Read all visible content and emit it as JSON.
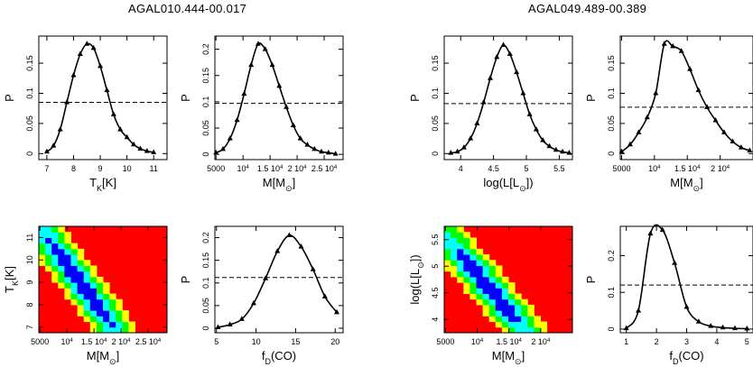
{
  "titles": [
    "AGAL010.444-00.017",
    "AGAL049.489-00.389"
  ],
  "chart_data": [
    {
      "id": "p1",
      "type": "line",
      "ylabel": "P",
      "xlabel": "T_K[K]",
      "xlim": [
        6.7,
        11.5
      ],
      "ylim": [
        -0.01,
        0.195
      ],
      "xticks": [
        {
          "v": 7,
          "t": "7"
        },
        {
          "v": 8,
          "t": "8"
        },
        {
          "v": 9,
          "t": "9"
        },
        {
          "v": 10,
          "t": "10"
        },
        {
          "v": 11,
          "t": "11"
        }
      ],
      "yticks": [
        {
          "v": 0,
          "t": "0"
        },
        {
          "v": 0.05,
          "t": "0.05"
        },
        {
          "v": 0.1,
          "t": "0.1"
        },
        {
          "v": 0.15,
          "t": "0.15"
        }
      ],
      "x": [
        7.0,
        7.25,
        7.5,
        7.75,
        8.0,
        8.25,
        8.5,
        8.75,
        9.0,
        9.25,
        9.5,
        9.75,
        10.0,
        10.25,
        10.5,
        10.75,
        11.0
      ],
      "y": [
        0.003,
        0.013,
        0.04,
        0.085,
        0.13,
        0.165,
        0.182,
        0.175,
        0.145,
        0.105,
        0.065,
        0.04,
        0.027,
        0.015,
        0.008,
        0.004,
        0.002
      ],
      "hline": 0.085
    },
    {
      "id": "p2",
      "type": "line",
      "ylabel": "P",
      "xlabel": "M[M_⊙]",
      "xlim": [
        4800,
        28500
      ],
      "ylim": [
        -0.01,
        0.225
      ],
      "xticks": [
        {
          "v": 5000,
          "t": "5000"
        },
        {
          "v": 10000,
          "t": "10^4"
        },
        {
          "v": 15000,
          "t": "1.5 10^4"
        },
        {
          "v": 20000,
          "t": "2 10^4"
        },
        {
          "v": 25000,
          "t": "2.5 10^4"
        }
      ],
      "yticks": [
        {
          "v": 0,
          "t": "0"
        },
        {
          "v": 0.05,
          "t": "0.05"
        },
        {
          "v": 0.1,
          "t": "0.1"
        },
        {
          "v": 0.15,
          "t": "0.15"
        },
        {
          "v": 0.2,
          "t": "0.2"
        }
      ],
      "x": [
        5000,
        6300,
        7600,
        8900,
        10200,
        11500,
        12800,
        14100,
        15400,
        16700,
        18000,
        19300,
        20600,
        21900,
        23200,
        24500,
        25800,
        27100
      ],
      "y": [
        0.003,
        0.01,
        0.03,
        0.065,
        0.115,
        0.17,
        0.21,
        0.2,
        0.17,
        0.13,
        0.09,
        0.055,
        0.03,
        0.018,
        0.01,
        0.005,
        0.003,
        0.001
      ],
      "hline": 0.097
    },
    {
      "id": "p3",
      "type": "line",
      "ylabel": "P",
      "xlabel": "log(L[L_⊙])",
      "xlim": [
        3.75,
        5.7
      ],
      "ylim": [
        -0.01,
        0.195
      ],
      "xticks": [
        {
          "v": 4,
          "t": "4"
        },
        {
          "v": 4.5,
          "t": "4.5"
        },
        {
          "v": 5,
          "t": "5"
        },
        {
          "v": 5.5,
          "t": "5.5"
        }
      ],
      "yticks": [
        {
          "v": 0,
          "t": "0"
        },
        {
          "v": 0.05,
          "t": "0.05"
        },
        {
          "v": 0.1,
          "t": "0.1"
        },
        {
          "v": 0.15,
          "t": "0.15"
        }
      ],
      "x": [
        3.85,
        3.95,
        4.05,
        4.15,
        4.25,
        4.35,
        4.45,
        4.55,
        4.65,
        4.75,
        4.85,
        4.95,
        5.05,
        5.15,
        5.25,
        5.35,
        5.45,
        5.55,
        5.65
      ],
      "y": [
        0.001,
        0.003,
        0.01,
        0.025,
        0.05,
        0.085,
        0.125,
        0.16,
        0.18,
        0.165,
        0.135,
        0.1,
        0.065,
        0.04,
        0.022,
        0.012,
        0.006,
        0.003,
        0.001
      ],
      "hline": 0.083
    },
    {
      "id": "p4",
      "type": "line",
      "ylabel": "P",
      "xlabel": "M[M_⊙]",
      "xlim": [
        4800,
        25000
      ],
      "ylim": [
        -0.01,
        0.195
      ],
      "xticks": [
        {
          "v": 5000,
          "t": "5000"
        },
        {
          "v": 10000,
          "t": "10^4"
        },
        {
          "v": 15000,
          "t": "1.5 10^4"
        },
        {
          "v": 20000,
          "t": "2 10^4"
        }
      ],
      "yticks": [
        {
          "v": 0,
          "t": "0"
        },
        {
          "v": 0.05,
          "t": "0.05"
        },
        {
          "v": 0.1,
          "t": "0.1"
        },
        {
          "v": 0.15,
          "t": "0.15"
        }
      ],
      "x": [
        5000,
        6300,
        7600,
        8900,
        10200,
        11500,
        12800,
        14100,
        15400,
        16700,
        18000,
        19300,
        20600,
        21900,
        23200,
        24500
      ],
      "y": [
        0.003,
        0.015,
        0.035,
        0.06,
        0.1,
        0.182,
        0.178,
        0.17,
        0.14,
        0.105,
        0.077,
        0.055,
        0.035,
        0.02,
        0.01,
        0.005
      ],
      "hline": 0.077
    },
    {
      "id": "h1",
      "type": "heatmap",
      "ylabel": "T_K[K]",
      "xlabel": "M[M_⊙]",
      "xlim": [
        4800,
        28500
      ],
      "ylim": [
        6.75,
        11.5
      ],
      "xticks": [
        {
          "v": 5000,
          "t": "5000"
        },
        {
          "v": 10000,
          "t": "10^4"
        },
        {
          "v": 15000,
          "t": "1.5 10^4"
        },
        {
          "v": 20000,
          "t": "2 10^4"
        },
        {
          "v": 25000,
          "t": "2.5 10^4"
        }
      ],
      "yticks": [
        {
          "v": 7,
          "t": "7"
        },
        {
          "v": 8,
          "t": "8"
        },
        {
          "v": 9,
          "t": "9"
        },
        {
          "v": 10,
          "t": "10"
        },
        {
          "v": 11,
          "t": "11"
        }
      ],
      "background": "#ff0000",
      "colors": [
        "#ff0000",
        "#ffff00",
        "#00ff00",
        "#00ffff",
        "#0000ff"
      ],
      "peak": {
        "x": 12500,
        "y": 9.0
      },
      "slope": -0.00031,
      "spread_along": 9000,
      "spread_across": 0.7
    },
    {
      "id": "p5",
      "type": "line",
      "ylabel": "P",
      "xlabel": "f_D(CO)",
      "xlim": [
        4.8,
        21
      ],
      "ylim": [
        -0.01,
        0.225
      ],
      "xticks": [
        {
          "v": 5,
          "t": "5"
        },
        {
          "v": 10,
          "t": "10"
        },
        {
          "v": 15,
          "t": "15"
        },
        {
          "v": 20,
          "t": "20"
        }
      ],
      "yticks": [
        {
          "v": 0,
          "t": "0"
        },
        {
          "v": 0.05,
          "t": "0.05"
        },
        {
          "v": 0.1,
          "t": "0.1"
        },
        {
          "v": 0.15,
          "t": "0.15"
        },
        {
          "v": 0.2,
          "t": "0.2"
        }
      ],
      "x": [
        5.2,
        6.7,
        8.2,
        9.7,
        11.2,
        12.7,
        14.2,
        15.7,
        17.2,
        18.7,
        20.2
      ],
      "y": [
        0.002,
        0.008,
        0.02,
        0.055,
        0.11,
        0.17,
        0.205,
        0.18,
        0.13,
        0.07,
        0.035
      ],
      "hline": 0.112
    },
    {
      "id": "h2",
      "type": "heatmap",
      "ylabel": "log(L[L_⊙])",
      "xlabel": "M[M_⊙]",
      "xlim": [
        4800,
        25000
      ],
      "ylim": [
        3.75,
        5.75
      ],
      "xticks": [
        {
          "v": 5000,
          "t": "5000"
        },
        {
          "v": 10000,
          "t": "10^4"
        },
        {
          "v": 15000,
          "t": "1.5 10^4"
        },
        {
          "v": 20000,
          "t": "2 10^4"
        }
      ],
      "yticks": [
        {
          "v": 4,
          "t": "4"
        },
        {
          "v": 4.5,
          "t": "4.5"
        },
        {
          "v": 5,
          "t": "5"
        },
        {
          "v": 5.5,
          "t": "5.5"
        }
      ],
      "background": "#ff0000",
      "colors": [
        "#ff0000",
        "#ffff00",
        "#00ff00",
        "#00ffff",
        "#0000ff"
      ],
      "peak": {
        "x": 11500,
        "y": 4.65
      },
      "slope": -0.000135,
      "spread_along": 7500,
      "spread_across": 0.28
    },
    {
      "id": "p6",
      "type": "line",
      "ylabel": "P",
      "xlabel": "f_D(CO)",
      "xlim": [
        0.8,
        5.2
      ],
      "ylim": [
        -0.01,
        0.28
      ],
      "xticks": [
        {
          "v": 1,
          "t": "1"
        },
        {
          "v": 2,
          "t": "2"
        },
        {
          "v": 3,
          "t": "3"
        },
        {
          "v": 4,
          "t": "4"
        },
        {
          "v": 5,
          "t": "5"
        }
      ],
      "yticks": [
        {
          "v": 0,
          "t": "0"
        },
        {
          "v": 0.1,
          "t": "0.1"
        },
        {
          "v": 0.2,
          "t": "0.2"
        }
      ],
      "x": [
        1.0,
        1.4,
        1.8,
        2.2,
        2.6,
        3.0,
        3.4,
        3.8,
        4.2,
        4.6,
        5.0
      ],
      "y": [
        0.002,
        0.05,
        0.26,
        0.27,
        0.18,
        0.06,
        0.02,
        0.008,
        0.004,
        0.002,
        0.001
      ],
      "hline": 0.12
    }
  ]
}
